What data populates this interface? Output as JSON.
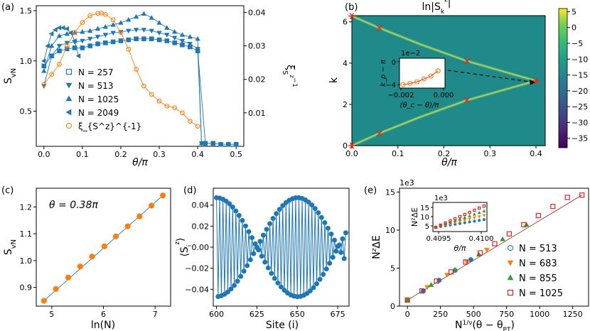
{
  "chart_data": [
    {
      "panel": "(a)",
      "type": "line",
      "xlabel": "θ/π",
      "ylabel": "S_vN",
      "y2label": "ξ_{S^z}^{-1}",
      "xlim": [
        -0.02,
        0.52
      ],
      "ylim": [
        0.15,
        1.55
      ],
      "y2lim": [
        0.0,
        0.042
      ],
      "xticks": [
        "0.0",
        "0.1",
        "0.2",
        "0.3",
        "0.4",
        "0.5"
      ],
      "yticks": [
        "0.5",
        "1.0",
        "1.5"
      ],
      "y2ticks": [
        "0.01",
        "0.02",
        "0.03",
        "0.04"
      ],
      "series": [
        {
          "name": "N = 257",
          "marker": "square",
          "x": [
            0.0,
            0.02,
            0.04,
            0.06,
            0.08,
            0.1,
            0.12,
            0.14,
            0.16,
            0.18,
            0.2,
            0.22,
            0.24,
            0.26,
            0.28,
            0.3,
            0.32,
            0.34,
            0.36,
            0.38,
            0.4,
            0.42,
            0.44,
            0.46,
            0.48,
            0.5
          ],
          "y": [
            0.95,
            1.05,
            1.1,
            1.12,
            1.13,
            1.13,
            1.15,
            1.17,
            1.18,
            1.19,
            1.2,
            1.21,
            1.22,
            1.22,
            1.22,
            1.21,
            1.2,
            1.18,
            1.16,
            1.14,
            1.1,
            0.18,
            0.18,
            0.17,
            0.17,
            0.17
          ]
        },
        {
          "name": "N = 513",
          "marker": "triangle-down",
          "x": [
            0.0,
            0.02,
            0.04,
            0.06,
            0.08,
            0.1,
            0.12,
            0.14,
            0.16,
            0.18,
            0.2,
            0.22,
            0.24,
            0.26,
            0.28,
            0.3,
            0.32,
            0.34,
            0.36,
            0.38,
            0.4,
            0.41
          ],
          "y": [
            0.75,
            1.05,
            1.15,
            1.18,
            1.19,
            1.2,
            1.22,
            1.24,
            1.26,
            1.28,
            1.29,
            1.3,
            1.31,
            1.31,
            1.3,
            1.28,
            1.26,
            1.23,
            1.2,
            1.17,
            1.12,
            0.18
          ]
        },
        {
          "name": "N = 1025",
          "marker": "triangle-up",
          "x": [
            0.0,
            0.02,
            0.04,
            0.06,
            0.08,
            0.1,
            0.12,
            0.14,
            0.16,
            0.18,
            0.2,
            0.22,
            0.24,
            0.26,
            0.28,
            0.3,
            0.32,
            0.34,
            0.36,
            0.38,
            0.4,
            0.41
          ],
          "y": [
            0.9,
            1.15,
            1.25,
            1.27,
            1.28,
            1.29,
            1.3,
            1.32,
            1.34,
            1.36,
            1.38,
            1.41,
            1.44,
            1.47,
            1.43,
            1.38,
            1.33,
            1.29,
            1.26,
            1.24,
            1.22,
            0.18
          ]
        },
        {
          "name": "N = 2049",
          "marker": "triangle-left",
          "x": [
            0.0,
            0.01,
            0.02,
            0.03,
            0.04,
            0.05,
            0.06,
            0.07,
            0.08,
            0.09
          ],
          "y": [
            1.0,
            1.15,
            1.27,
            1.31,
            1.33,
            1.33,
            1.32,
            1.28,
            1.2,
            1.05
          ]
        },
        {
          "name": "ξ_{S^z}^{-1}",
          "marker": "circle-open",
          "axis": "right",
          "x": [
            0.0,
            0.02,
            0.04,
            0.06,
            0.08,
            0.1,
            0.12,
            0.14,
            0.15,
            0.16,
            0.18,
            0.2,
            0.22,
            0.24,
            0.26,
            0.28,
            0.3,
            0.32,
            0.34,
            0.36,
            0.38,
            0.4
          ],
          "y": [
            0.0185,
            0.0215,
            0.0245,
            0.03,
            0.034,
            0.037,
            0.039,
            0.0397,
            0.0398,
            0.0394,
            0.0378,
            0.034,
            0.029,
            0.023,
            0.018,
            0.0155,
            0.0135,
            0.012,
            0.0115,
            0.01,
            0.0075,
            0.006
          ]
        }
      ]
    },
    {
      "panel": "(b)",
      "type": "heatmap",
      "title": "ln|S_k^z|",
      "xlabel": "θ/π",
      "ylabel": "k",
      "xlim": [
        0.0,
        0.42
      ],
      "ylim": [
        0,
        6.3
      ],
      "xticks": [
        "0.0",
        "0.1",
        "0.2",
        "0.3",
        "0.4"
      ],
      "yticks": [
        "0",
        "2",
        "4",
        "6"
      ],
      "colorbar_ticks": [
        "5",
        "0",
        "−5",
        "−10",
        "−15",
        "−20",
        "−25",
        "−30",
        "−35"
      ],
      "colorbar_range": [
        -38,
        6
      ],
      "markers_x": [
        {
          "theta": 0.06,
          "k": 5.7
        },
        {
          "theta": 0.06,
          "k": 0.6
        },
        {
          "theta": 0.25,
          "k": 4.1
        },
        {
          "theta": 0.25,
          "k": 2.2
        }
      ],
      "markers_star": [
        {
          "theta": 0.0,
          "k": 6.28
        },
        {
          "theta": 0.0,
          "k": 0.0
        },
        {
          "theta": 0.4,
          "k": 3.14
        }
      ],
      "inset": {
        "xlabel": "(θ_c − θ)/π",
        "ylabel": "k_p − π",
        "multiplier": "1e−2",
        "xticks": [
          "−0.002",
          "0.000"
        ],
        "yticks": [
          "0",
          "−4"
        ],
        "x": [
          -0.0022,
          -0.0018,
          -0.0014,
          -0.001,
          -0.0006,
          -0.0002
        ],
        "y": [
          -4.0,
          -3.8,
          -3.5,
          -3.0,
          -2.5,
          -1.6
        ]
      }
    },
    {
      "panel": "(c)",
      "type": "line",
      "annotation": "θ = 0.38π",
      "xlabel": "ln(N)",
      "ylabel": "S_vN",
      "xlim": [
        4.7,
        7.3
      ],
      "ylim": [
        0.83,
        1.27
      ],
      "xticks": [
        "5",
        "6",
        "7"
      ],
      "yticks": [
        "0.9",
        "1.0",
        "1.1",
        "1.2"
      ],
      "x": [
        4.85,
        5.08,
        5.32,
        5.55,
        5.78,
        6.02,
        6.24,
        6.47,
        6.7,
        6.93,
        7.15
      ],
      "y": [
        0.85,
        0.894,
        0.937,
        0.978,
        1.015,
        1.053,
        1.09,
        1.128,
        1.165,
        1.205,
        1.243
      ]
    },
    {
      "panel": "(d)",
      "type": "line",
      "xlabel": "Site (i)",
      "ylabel": "⟨S_i^z⟩",
      "xlim": [
        598,
        682
      ],
      "ylim": [
        -0.056,
        0.056
      ],
      "xticks": [
        "600",
        "625",
        "650",
        "675"
      ],
      "yticks": [
        "0.04",
        "0.02",
        "0.00",
        "−0.02",
        "−0.04"
      ],
      "amplitude": 0.047,
      "wavevector": 3.079,
      "site_range": [
        600,
        680
      ]
    },
    {
      "panel": "(e)",
      "type": "scatter",
      "xlabel": "N^{1/ν}(θ − θ_PT)",
      "ylabel": "N^z ΔE",
      "multiplier": "1e3",
      "xlim": [
        -60,
        1370
      ],
      "ylim": [
        0,
        15.5
      ],
      "xticks": [
        "0",
        "250",
        "500",
        "750",
        "1000",
        "1250"
      ],
      "yticks": [
        "0",
        "5",
        "10",
        "15"
      ],
      "series": [
        {
          "name": "N = 513",
          "color": "#1f77b4",
          "marker": "circle",
          "x": [
            0,
            120,
            240,
            360,
            480
          ],
          "y": [
            0.8,
            2.0,
            3.4,
            4.7,
            6.1
          ]
        },
        {
          "name": "N = 683",
          "color": "#ff7f0e",
          "marker": "triangle-down",
          "x": [
            0,
            150,
            300,
            450,
            600
          ],
          "y": [
            0.8,
            2.5,
            4.1,
            5.8,
            7.4
          ]
        },
        {
          "name": "N = 855",
          "color": "#2ca02c",
          "marker": "triangle-up",
          "x": [
            0,
            180,
            360,
            540,
            720,
            900
          ],
          "y": [
            0.8,
            2.8,
            4.8,
            6.8,
            8.8,
            10.7
          ]
        },
        {
          "name": "N = 1025",
          "color": "#d62728",
          "marker": "square-open",
          "x": [
            0,
            110,
            220,
            330,
            440,
            550,
            660,
            770,
            880,
            990,
            1100,
            1210,
            1320
          ],
          "y": [
            0.8,
            2.0,
            3.3,
            4.5,
            5.8,
            7.0,
            8.2,
            9.5,
            10.7,
            11.9,
            13.1,
            14.3,
            14.6
          ]
        }
      ],
      "inset": {
        "xlabel": "θ/π",
        "ylabel": "N²ΔE",
        "multiplier": "1e3",
        "xticks": [
          "0.4095",
          "0.4100"
        ],
        "yticks": [
          "5",
          "10",
          "15"
        ]
      }
    }
  ],
  "labels": {
    "panel_a": "(a)",
    "panel_b": "(b)",
    "panel_c": "(c)",
    "panel_d": "(d)",
    "panel_e": "(e)"
  },
  "colors": {
    "blue": "#1f77b4",
    "orange": "#ff7f0e",
    "green": "#2ca02c",
    "red": "#d62728",
    "axisBlue": "#2b7bba",
    "axisOrange": "#e8832a"
  }
}
